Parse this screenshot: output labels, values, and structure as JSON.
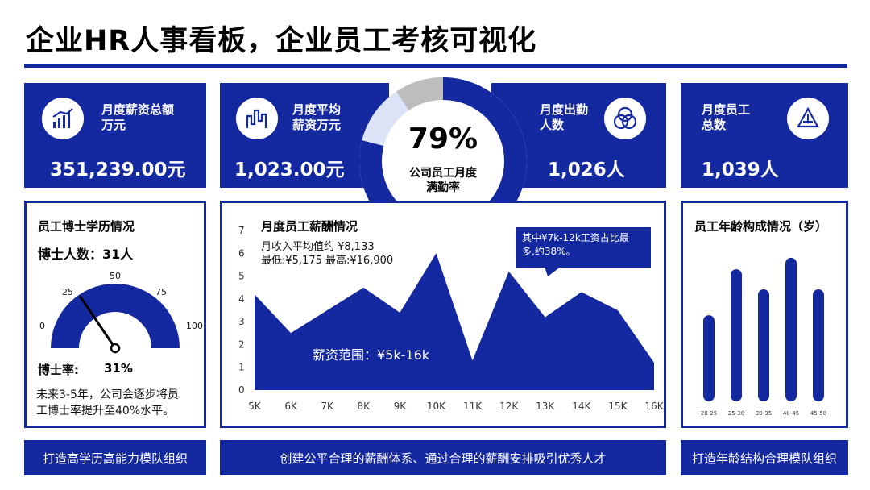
{
  "title": "企业HR人事看板，企业员工考核可视化",
  "colors": {
    "primary": "#1428a0",
    "light": "#dde3f6",
    "gray": "#bdbdbd"
  },
  "kpis": [
    {
      "label_line1": "月度薪资总额",
      "label_line2": "万元",
      "value": "351,239.00元",
      "icon": "bar-growth-icon"
    },
    {
      "label_line1": "月度平均",
      "label_line2": "薪资万元",
      "value": "1,023.00元",
      "icon": "bar-chart-icon"
    },
    {
      "label_line1": "月度出勤",
      "label_line2": "人数",
      "value": "1,026人",
      "icon": "venn-circles-icon"
    },
    {
      "label_line1": "月度员工",
      "label_line2": "总数",
      "value": "1,039人",
      "icon": "recycle-triangle-icon"
    }
  ],
  "donut": {
    "percent": "79%",
    "label_line1": "公司员工月度",
    "label_line2": "满勤率",
    "value": 0.79
  },
  "phd": {
    "title": "员工博士学历情况",
    "count_label": "博士人数：31人",
    "rate_label": "博士率:",
    "rate_value": "31%",
    "gauge_value": 31,
    "gauge_ticks": [
      "0",
      "25",
      "50",
      "75",
      "100"
    ],
    "note_line1": "未来3-5年，公司会逐步将员",
    "note_line2": "工博士率提升至40%水平。"
  },
  "salary": {
    "title": "月度员工薪酬情况",
    "note_line1": "月收入平均值约 ¥8,133",
    "note_line2": "最低:¥5,175 最高:¥16,900",
    "range_label": "薪资范围：¥5k-16k",
    "callout_line1": "其中¥7k-12k工资占比最",
    "callout_line2": "多,约38%。"
  },
  "age": {
    "title": "员工年龄构成情况（岁）"
  },
  "chart_data": [
    {
      "type": "area",
      "x": [
        "5K",
        "6K",
        "7K",
        "8K",
        "9K",
        "10K",
        "11K",
        "12K",
        "13K",
        "14K",
        "15K",
        "16K"
      ],
      "values": [
        4.2,
        2.5,
        3.5,
        4.5,
        3.4,
        6.0,
        1.3,
        5.2,
        3.2,
        4.3,
        3.5,
        1.2
      ],
      "yticks": [
        "0",
        "1",
        "2",
        "3",
        "4",
        "5",
        "6",
        "7"
      ],
      "ylim": [
        0,
        7
      ]
    },
    {
      "type": "bar",
      "categories": [
        "20-25",
        "25-30",
        "30-35",
        "40-45",
        "45-50"
      ],
      "values": [
        3.0,
        4.6,
        3.9,
        5.0,
        3.9
      ],
      "ylim": [
        0,
        5.5
      ]
    }
  ],
  "footers": [
    "打造高学历高能力模队组织",
    "创建公平合理的薪酬体系、通过合理的薪酬安排吸引优秀人才",
    "打造年龄结构合理模队组织"
  ]
}
